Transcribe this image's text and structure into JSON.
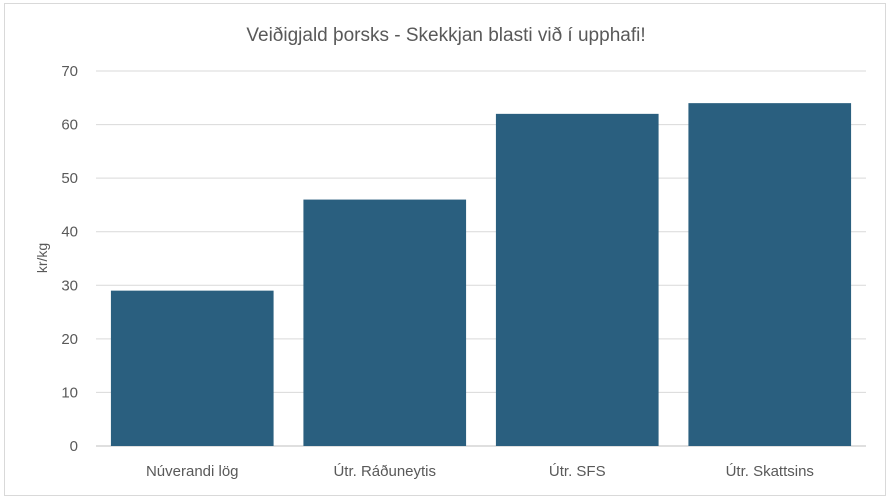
{
  "chart_data": {
    "type": "bar",
    "title": "Veiðigjald þorsks - Skekkjan blasti við í upphafi!",
    "xlabel": "",
    "ylabel": "kr/kg",
    "categories": [
      "Núverandi lög",
      "Útr. Ráðuneytis",
      "Útr. SFS",
      "Útr. Skattsins"
    ],
    "values": [
      29,
      46,
      62,
      64
    ],
    "ylim": [
      0,
      70
    ],
    "yticks": [
      0,
      10,
      20,
      30,
      40,
      50,
      60,
      70
    ],
    "grid": true,
    "legend": "none",
    "bar_color": "#2a5f7f"
  }
}
